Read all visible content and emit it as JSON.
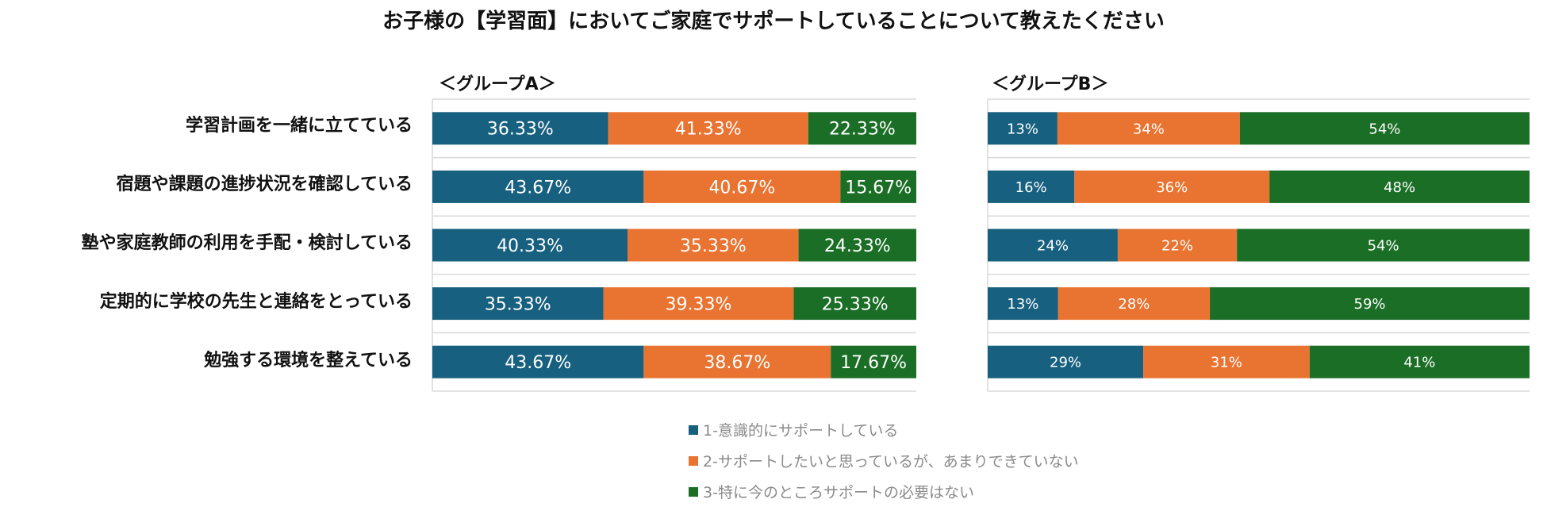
{
  "chart_data": {
    "type": "bar",
    "orientation": "horizontal",
    "stacked": true,
    "title": "お子様の【学習面】においてご家庭でサポートしていることについて教えたください",
    "categories": [
      "学習計画を一緒に立てている",
      "宿題や課題の進捗状況を確認している",
      "塾や家庭教師の利用を手配・検討している",
      "定期的に学校の先生と連絡をとっている",
      "勉強する環境を整えている"
    ],
    "legend_position": "bottom",
    "grid": true,
    "series_meta": [
      {
        "name": "1-意識的にサポートしている",
        "color": "#17607f"
      },
      {
        "name": "2-サポートしたいと思っているが、あまりできていない",
        "color": "#e97432"
      },
      {
        "name": "3-特に今のところサポートの必要はない",
        "color": "#1b6e26"
      }
    ],
    "panels": [
      {
        "group": "＜グループA＞",
        "labels": [
          [
            "36.33%",
            "41.33%",
            "22.33%"
          ],
          [
            "43.67%",
            "40.67%",
            "15.67%"
          ],
          [
            "40.33%",
            "35.33%",
            "24.33%"
          ],
          [
            "35.33%",
            "39.33%",
            "25.33%"
          ],
          [
            "43.67%",
            "38.67%",
            "17.67%"
          ]
        ],
        "values": [
          [
            36.33,
            41.33,
            22.33
          ],
          [
            43.67,
            40.67,
            15.67
          ],
          [
            40.33,
            35.33,
            24.33
          ],
          [
            35.33,
            39.33,
            25.33
          ],
          [
            43.67,
            38.67,
            17.67
          ]
        ]
      },
      {
        "group": "＜グループB＞",
        "labels": [
          [
            "13%",
            "34%",
            "54%"
          ],
          [
            "16%",
            "36%",
            "48%"
          ],
          [
            "24%",
            "22%",
            "54%"
          ],
          [
            "13%",
            "28%",
            "59%"
          ],
          [
            "29%",
            "31%",
            "41%"
          ]
        ],
        "values": [
          [
            13,
            34,
            54
          ],
          [
            16,
            36,
            48
          ],
          [
            24,
            22,
            54
          ],
          [
            13,
            28,
            59
          ],
          [
            29,
            31,
            41
          ]
        ]
      }
    ]
  }
}
